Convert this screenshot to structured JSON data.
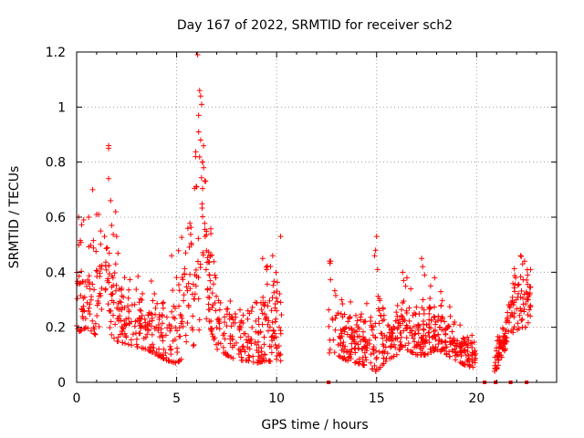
{
  "chart_data": {
    "type": "scatter",
    "title": "Day 167 of 2022, SRMTID for receiver sch2",
    "xlabel": "GPS time / hours",
    "ylabel": "SRMTID / TECUs",
    "xlim": [
      0,
      24
    ],
    "ylim": [
      0,
      1.2
    ],
    "grid": true,
    "marker": "+",
    "color": "#ff0000",
    "x_ticks": [
      0,
      5,
      10,
      15,
      20
    ],
    "x_tick_labels": [
      "0",
      "5",
      "10",
      "15",
      "20"
    ],
    "y_ticks": [
      0,
      0.2,
      0.4,
      0.6,
      0.8,
      1,
      1.2
    ],
    "y_tick_labels": [
      "0",
      "0.2",
      "0.4",
      "0.6",
      "0.8",
      "1",
      "1.2"
    ],
    "series": [
      {
        "name": "sch2",
        "segments": [
          {
            "t": [
              0.0,
              0.5,
              1.0,
              1.5,
              2.0,
              2.5,
              3.0,
              3.5,
              4.0,
              4.5,
              5.0,
              5.5,
              6.0,
              6.3,
              6.6,
              7.0,
              7.5,
              8.0,
              8.5,
              9.0,
              9.5,
              10.0,
              10.25
            ],
            "lo": [
              0.18,
              0.2,
              0.17,
              0.19,
              0.15,
              0.14,
              0.13,
              0.12,
              0.1,
              0.08,
              0.07,
              0.1,
              0.15,
              0.25,
              0.22,
              0.12,
              0.1,
              0.08,
              0.08,
              0.07,
              0.08,
              0.07,
              0.08
            ],
            "hi": [
              0.6,
              0.55,
              0.6,
              0.65,
              0.5,
              0.42,
              0.4,
              0.38,
              0.36,
              0.32,
              0.45,
              0.6,
              0.9,
              1.05,
              0.65,
              0.38,
              0.35,
              0.32,
              0.33,
              0.38,
              0.45,
              0.48,
              0.5
            ],
            "n": 650
          },
          {
            "t": [
              12.6,
              13.0,
              13.5,
              14.0,
              14.5,
              15.0,
              15.5,
              16.0,
              16.5,
              17.0,
              17.5,
              18.0,
              18.5,
              19.0,
              19.5,
              19.95
            ],
            "lo": [
              0.1,
              0.1,
              0.08,
              0.07,
              0.06,
              0.04,
              0.08,
              0.1,
              0.12,
              0.1,
              0.1,
              0.12,
              0.1,
              0.08,
              0.06,
              0.05
            ],
            "hi": [
              0.45,
              0.35,
              0.3,
              0.28,
              0.3,
              0.38,
              0.3,
              0.32,
              0.4,
              0.3,
              0.3,
              0.35,
              0.3,
              0.22,
              0.2,
              0.15
            ],
            "n": 520
          },
          {
            "t": [
              20.9,
              21.3,
              21.8,
              22.2,
              22.7
            ],
            "lo": [
              0.03,
              0.1,
              0.18,
              0.2,
              0.2
            ],
            "hi": [
              0.15,
              0.22,
              0.4,
              0.46,
              0.42
            ],
            "n": 140
          }
        ],
        "highlights": [
          [
            1.6,
            0.86
          ],
          [
            1.6,
            0.85
          ],
          [
            6.05,
            1.19
          ],
          [
            6.15,
            1.06
          ],
          [
            6.2,
            1.04
          ],
          [
            6.25,
            1.01
          ],
          [
            6.1,
            0.97
          ],
          [
            6.1,
            0.91
          ],
          [
            6.2,
            0.88
          ],
          [
            5.95,
            0.82
          ],
          [
            6.3,
            0.8
          ],
          [
            6.35,
            0.78
          ],
          [
            6.45,
            0.73
          ],
          [
            6.0,
            0.71
          ],
          [
            0.8,
            0.7
          ],
          [
            1.6,
            0.74
          ],
          [
            1.7,
            0.66
          ],
          [
            1.95,
            0.62
          ],
          [
            1.75,
            0.57
          ],
          [
            0.1,
            0.6
          ],
          [
            0.35,
            0.59
          ],
          [
            0.6,
            0.6
          ],
          [
            1.0,
            0.61
          ],
          [
            1.2,
            0.55
          ],
          [
            2.0,
            0.53
          ],
          [
            10.2,
            0.53
          ],
          [
            9.8,
            0.46
          ],
          [
            9.5,
            0.41
          ],
          [
            9.3,
            0.45
          ],
          [
            4.75,
            0.46
          ],
          [
            12.65,
            0.44
          ],
          [
            12.7,
            0.44
          ],
          [
            15.0,
            0.53
          ],
          [
            14.95,
            0.48
          ],
          [
            14.9,
            0.46
          ],
          [
            15.05,
            0.41
          ],
          [
            16.3,
            0.4
          ],
          [
            16.35,
            0.37
          ],
          [
            17.25,
            0.45
          ],
          [
            17.3,
            0.42
          ],
          [
            17.4,
            0.39
          ],
          [
            17.9,
            0.38
          ],
          [
            17.7,
            0.35
          ],
          [
            22.2,
            0.46
          ],
          [
            22.3,
            0.43
          ],
          [
            22.4,
            0.44
          ],
          [
            22.55,
            0.39
          ],
          [
            22.7,
            0.41
          ],
          [
            21.95,
            0.38
          ],
          [
            14.95,
            0.04
          ],
          [
            14.9,
            0.06
          ],
          [
            20.9,
            0.04
          ],
          [
            21.0,
            0.05
          ],
          [
            21.1,
            0.08
          ]
        ],
        "zeros": [
          12.6,
          20.4,
          20.95,
          21.7,
          22.5
        ]
      }
    ]
  }
}
